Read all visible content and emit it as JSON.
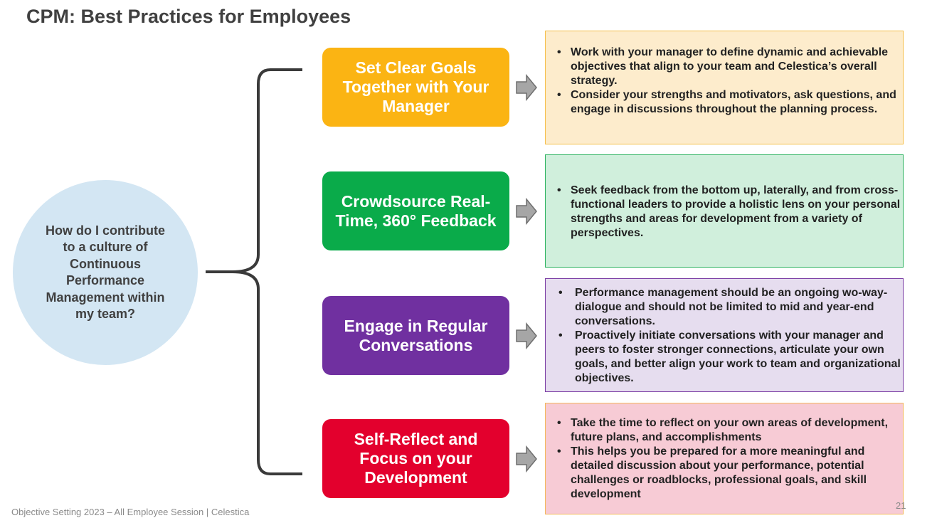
{
  "title": "CPM: Best Practices for Employees",
  "question": "How do I contribute to a culture of Continuous Performance Management within my team?",
  "practices": [
    {
      "label": "Set Clear Goals Together with Your Manager",
      "color": "#fbb413",
      "panel_bg": "#fdeccc",
      "panel_border": "#f5bf4a",
      "bullets": [
        "Work with your manager to define dynamic and achievable objectives that align to your team and Celestica’s overall strategy.",
        "Consider your strengths and motivators, ask questions, and engage in discussions throughout the planning process."
      ]
    },
    {
      "label": "Crowdsource Real-Time, 360° Feedback",
      "color": "#0aab4a",
      "panel_bg": "#d0efdc",
      "panel_border": "#2cb25f",
      "bullets": [
        "Seek feedback from the bottom up, laterally, and from cross-functional leaders to provide a holistic lens on your personal strengths and areas for development from a variety of perspectives."
      ]
    },
    {
      "label": "Engage in Regular Conversations",
      "color": "#7030a0",
      "panel_bg": "#e6ddef",
      "panel_border": "#7a3ca4",
      "bullets": [
        "Performance management should be an ongoing wo-way-dialogue and should not be limited to mid and year-end conversations.",
        "Proactively initiate conversations with your manager and peers to foster stronger connections, articulate your own goals, and better align your work to team and organizational objectives."
      ]
    },
    {
      "label": "Self-Reflect and Focus on your Development",
      "color": "#e3002d",
      "panel_bg": "#f7cbd5",
      "panel_border": "#f3b85a",
      "bullets": [
        "Take the time to reflect on your own areas of development, future plans, and accomplishments",
        "This helps you be prepared for a more meaningful and detailed discussion about your performance, potential challenges or roadblocks, professional goals, and skill development"
      ]
    }
  ],
  "footer": "Objective Setting 2023 – All Employee Session | Celestica",
  "page_number": "21"
}
